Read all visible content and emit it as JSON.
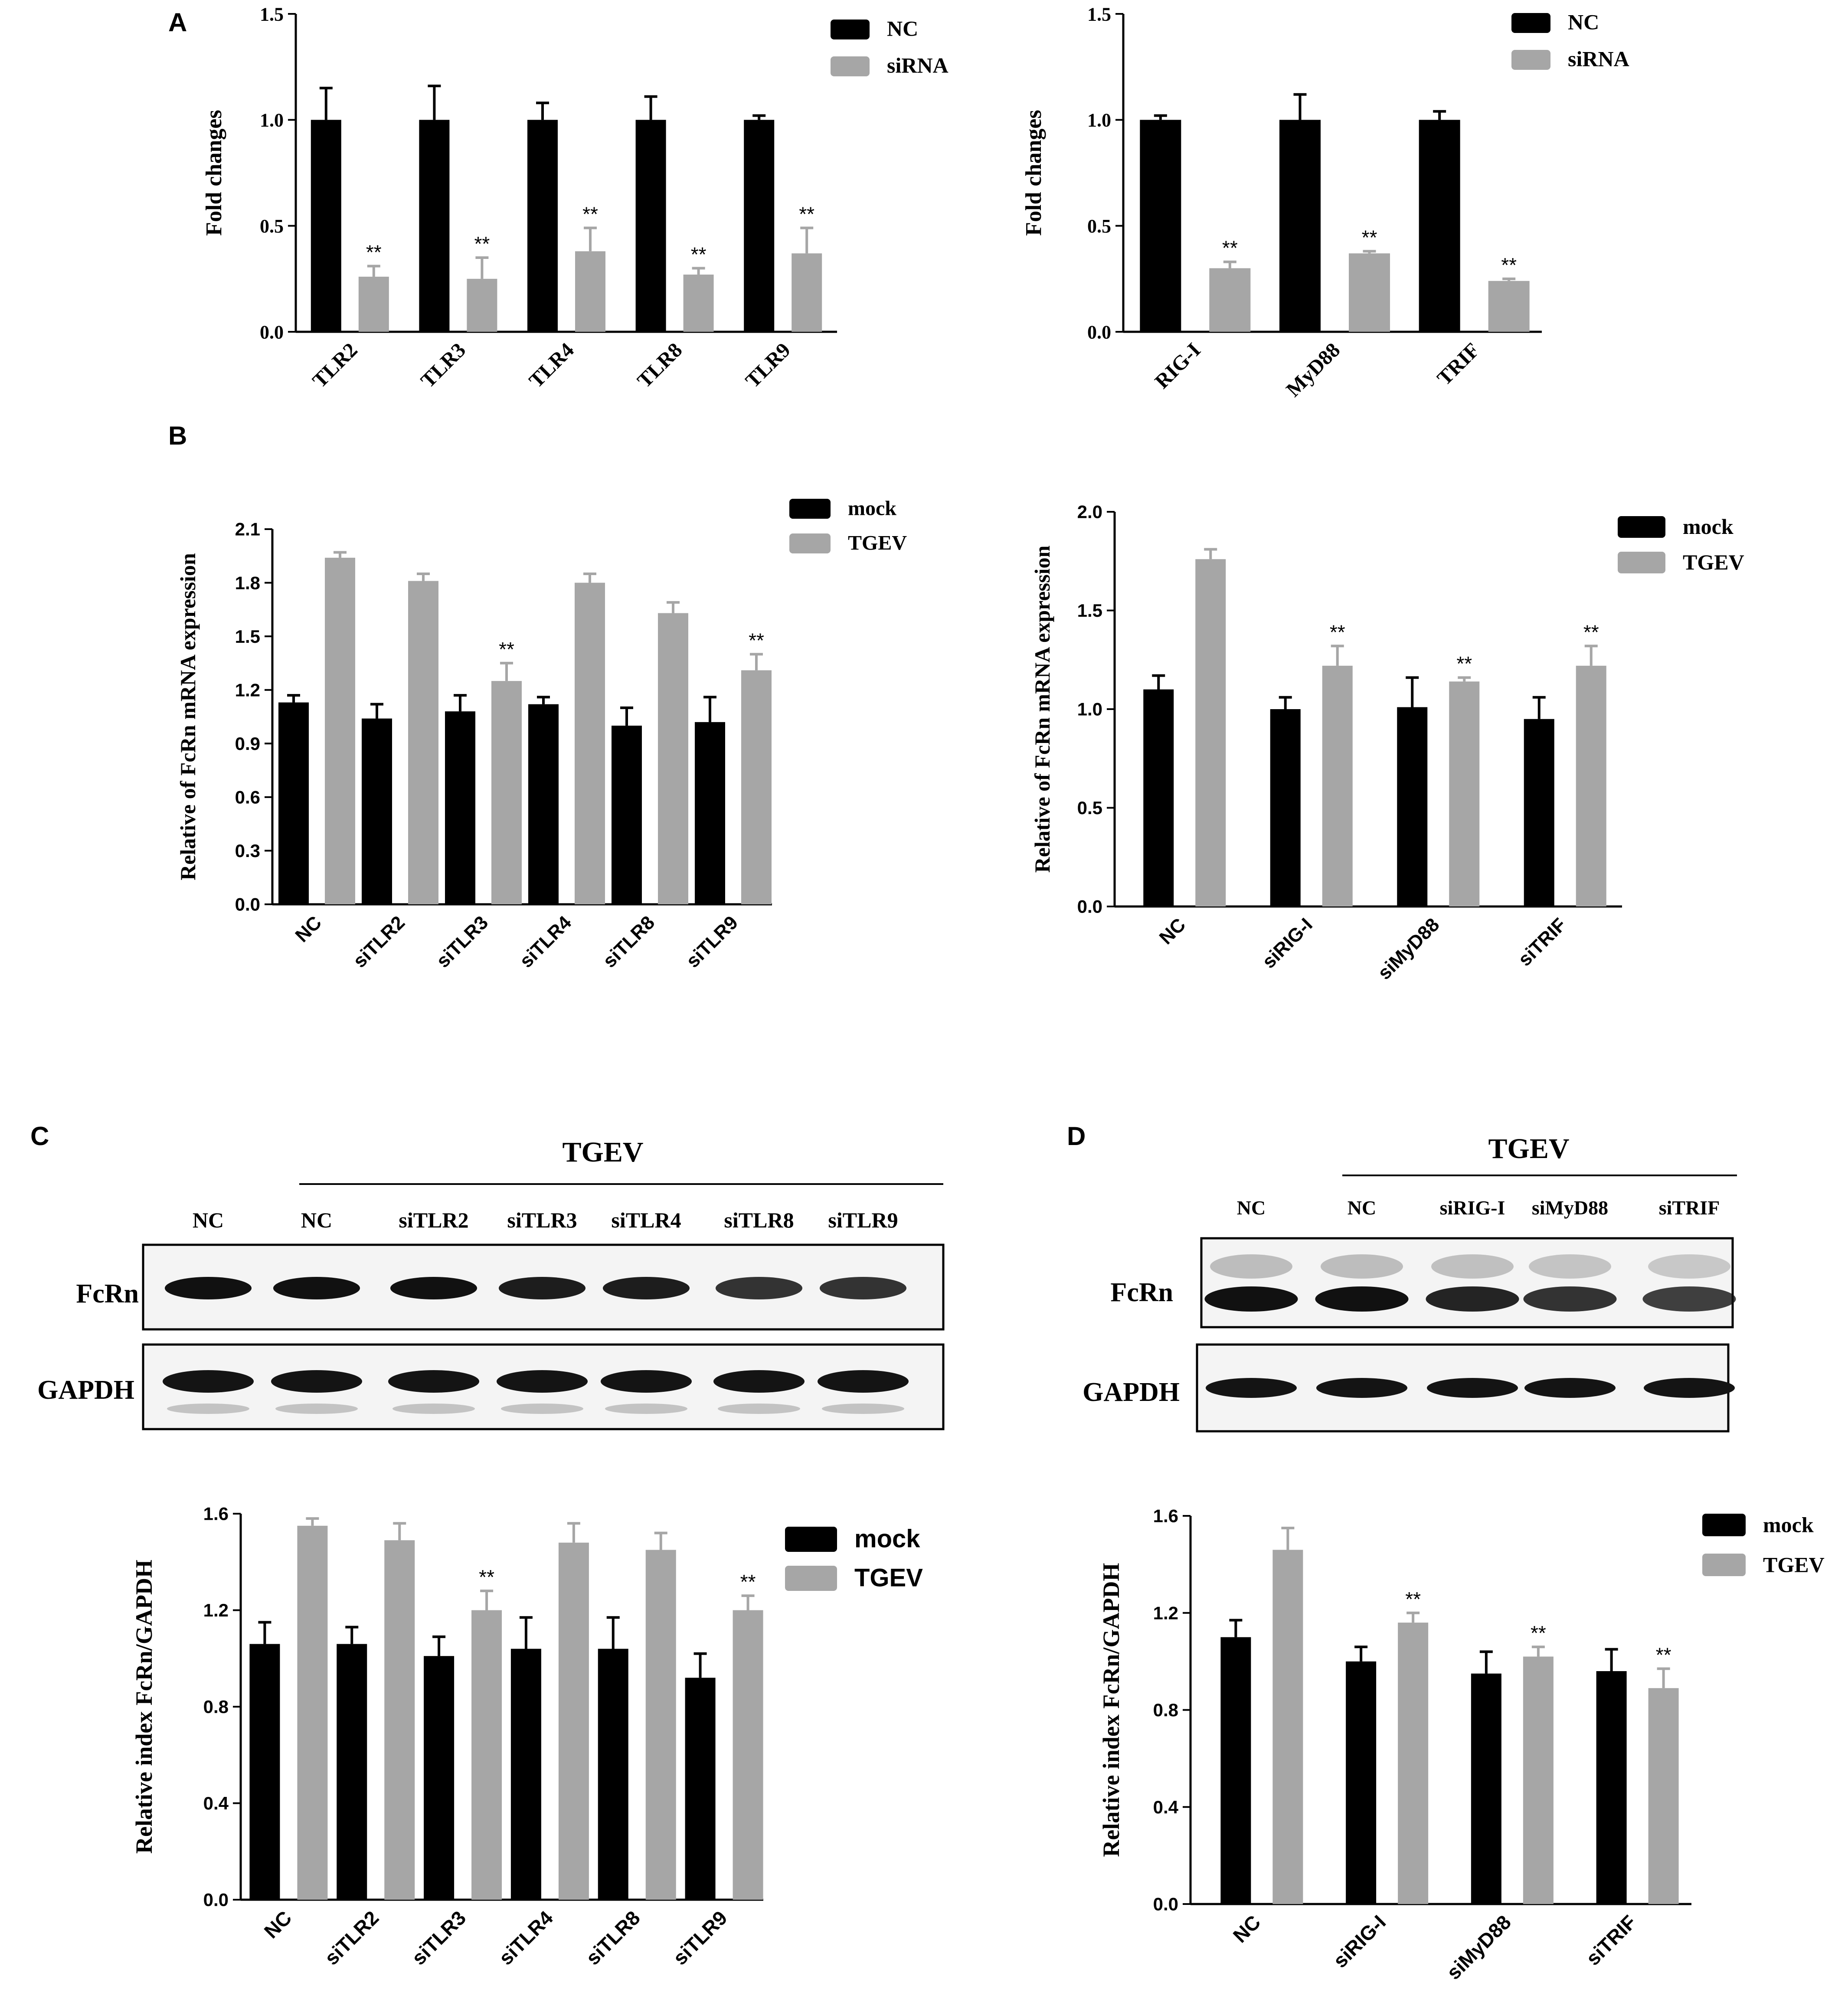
{
  "panels": [
    {
      "id": "A",
      "label": "A"
    },
    {
      "id": "B",
      "label": "B"
    },
    {
      "id": "C",
      "label": "C"
    },
    {
      "id": "D",
      "label": "D"
    }
  ],
  "colors": {
    "black_series": "#000000",
    "gray_series": "#a6a6a6"
  },
  "chart_data": [
    {
      "id": "A1",
      "type": "bar",
      "title": "",
      "xlabel": "",
      "ylabel": "Fold changes",
      "ylim": [
        0,
        1.5
      ],
      "yticks": [
        0.0,
        0.5,
        1.0,
        1.5
      ],
      "ytick_labels": [
        "0.0",
        "0.5",
        "1.0",
        "1.5"
      ],
      "categories": [
        "TLR2",
        "TLR3",
        "TLR4",
        "TLR8",
        "TLR9"
      ],
      "series": [
        {
          "name": "NC",
          "values": [
            1.0,
            1.0,
            1.0,
            1.0,
            1.0
          ],
          "errors": [
            0.15,
            0.16,
            0.08,
            0.11,
            0.02
          ]
        },
        {
          "name": "siRNA",
          "values": [
            0.26,
            0.25,
            0.38,
            0.27,
            0.37
          ],
          "errors": [
            0.05,
            0.1,
            0.11,
            0.03,
            0.12
          ],
          "annotations": [
            "**",
            "**",
            "**",
            "**",
            "**"
          ]
        }
      ],
      "legend_position": "top-right",
      "grid": false
    },
    {
      "id": "A2",
      "type": "bar",
      "title": "",
      "xlabel": "",
      "ylabel": "Fold changes",
      "ylim": [
        0,
        1.5
      ],
      "yticks": [
        0.0,
        0.5,
        1.0,
        1.5
      ],
      "ytick_labels": [
        "0.0",
        "0.5",
        "1.0",
        "1.5"
      ],
      "categories": [
        "RIG-I",
        "MyD88",
        "TRIF"
      ],
      "series": [
        {
          "name": "NC",
          "values": [
            1.0,
            1.0,
            1.0
          ],
          "errors": [
            0.02,
            0.12,
            0.04
          ]
        },
        {
          "name": "siRNA",
          "values": [
            0.3,
            0.37,
            0.24
          ],
          "errors": [
            0.03,
            0.01,
            0.01
          ],
          "annotations": [
            "**",
            "**",
            "**"
          ]
        }
      ],
      "legend_position": "top-right",
      "grid": false
    },
    {
      "id": "B1",
      "type": "bar",
      "title": "",
      "xlabel": "",
      "ylabel": "Relative of FcRn mRNA expression",
      "ylim": [
        0,
        2.1
      ],
      "yticks": [
        0.0,
        0.3,
        0.6,
        0.9,
        1.2,
        1.5,
        1.8,
        2.1
      ],
      "ytick_labels": [
        "0.0",
        "0.3",
        "0.6",
        "0.9",
        "1.2",
        "1.5",
        "1.8",
        "2.1"
      ],
      "categories": [
        "NC",
        "siTLR2",
        "siTLR3",
        "siTLR4",
        "siTLR8",
        "siTLR9"
      ],
      "series": [
        {
          "name": "mock",
          "values": [
            1.13,
            1.04,
            1.08,
            1.12,
            1.0,
            1.02
          ],
          "errors": [
            0.04,
            0.08,
            0.09,
            0.04,
            0.1,
            0.14
          ]
        },
        {
          "name": "TGEV",
          "values": [
            1.94,
            1.81,
            1.25,
            1.8,
            1.63,
            1.31
          ],
          "errors": [
            0.03,
            0.04,
            0.1,
            0.05,
            0.06,
            0.09
          ],
          "annotations": [
            "",
            "",
            "**",
            "",
            "",
            "**"
          ]
        }
      ],
      "legend_position": "top-right",
      "grid": false
    },
    {
      "id": "B2",
      "type": "bar",
      "title": "",
      "xlabel": "",
      "ylabel": "Relative of FcRn mRNA expression",
      "ylim": [
        0,
        2.0
      ],
      "yticks": [
        0.0,
        0.5,
        1.0,
        1.5,
        2.0
      ],
      "ytick_labels": [
        "0.0",
        "0.5",
        "1.0",
        "1.5",
        "2.0"
      ],
      "categories": [
        "NC",
        "siRIG-I",
        "siMyD88",
        "siTRIF"
      ],
      "series": [
        {
          "name": "mock",
          "values": [
            1.1,
            1.0,
            1.01,
            0.95
          ],
          "errors": [
            0.07,
            0.06,
            0.15,
            0.11
          ]
        },
        {
          "name": "TGEV",
          "values": [
            1.76,
            1.22,
            1.14,
            1.22
          ],
          "errors": [
            0.05,
            0.1,
            0.02,
            0.1
          ],
          "annotations": [
            "",
            "**",
            "**",
            "**"
          ]
        }
      ],
      "legend_position": "top-right",
      "grid": false
    },
    {
      "id": "C1",
      "type": "bar",
      "title": "",
      "xlabel": "",
      "ylabel": "Relative index FcRn/GAPDH",
      "ylim": [
        0,
        1.6
      ],
      "yticks": [
        0.0,
        0.4,
        0.8,
        1.2,
        1.6
      ],
      "ytick_labels": [
        "0.0",
        "0.4",
        "0.8",
        "1.2",
        "1.6"
      ],
      "categories": [
        "NC",
        "siTLR2",
        "siTLR3",
        "siTLR4",
        "siTLR8",
        "siTLR9"
      ],
      "series": [
        {
          "name": "mock",
          "values": [
            1.06,
            1.06,
            1.01,
            1.04,
            1.04,
            0.92
          ],
          "errors": [
            0.09,
            0.07,
            0.08,
            0.13,
            0.13,
            0.1
          ]
        },
        {
          "name": "TGEV",
          "values": [
            1.55,
            1.49,
            1.2,
            1.48,
            1.45,
            1.2
          ],
          "errors": [
            0.03,
            0.07,
            0.08,
            0.08,
            0.07,
            0.06
          ],
          "annotations": [
            "",
            "",
            "**",
            "",
            "",
            "**"
          ]
        }
      ],
      "legend_position": "top-right",
      "grid": false
    },
    {
      "id": "D1",
      "type": "bar",
      "title": "",
      "xlabel": "",
      "ylabel": "Relative index FcRn/GAPDH",
      "ylim": [
        0,
        1.6
      ],
      "yticks": [
        0.0,
        0.4,
        0.8,
        1.2,
        1.6
      ],
      "ytick_labels": [
        "0.0",
        "0.4",
        "0.8",
        "1.2",
        "1.6"
      ],
      "categories": [
        "NC",
        "siRIG-I",
        "siMyD88",
        "siTRIF"
      ],
      "series": [
        {
          "name": "mock",
          "values": [
            1.1,
            1.0,
            0.95,
            0.96
          ],
          "errors": [
            0.07,
            0.06,
            0.09,
            0.09
          ]
        },
        {
          "name": "TGEV",
          "values": [
            1.46,
            1.16,
            1.02,
            0.89
          ],
          "errors": [
            0.09,
            0.04,
            0.04,
            0.08
          ],
          "annotations": [
            "",
            "**",
            "**",
            "**"
          ]
        }
      ],
      "legend_position": "top-right",
      "grid": false
    }
  ],
  "blots": {
    "C": {
      "group_label": "TGEV",
      "lanes": [
        "NC",
        "NC",
        "siTLR2",
        "siTLR3",
        "siTLR4",
        "siTLR8",
        "siTLR9"
      ],
      "rows": [
        "FcRn",
        "GAPDH"
      ]
    },
    "D": {
      "group_label": "TGEV",
      "lanes": [
        "NC",
        "NC",
        "siRIG-I",
        "siMyD88",
        "siTRIF"
      ],
      "rows": [
        "FcRn",
        "GAPDH"
      ]
    }
  }
}
